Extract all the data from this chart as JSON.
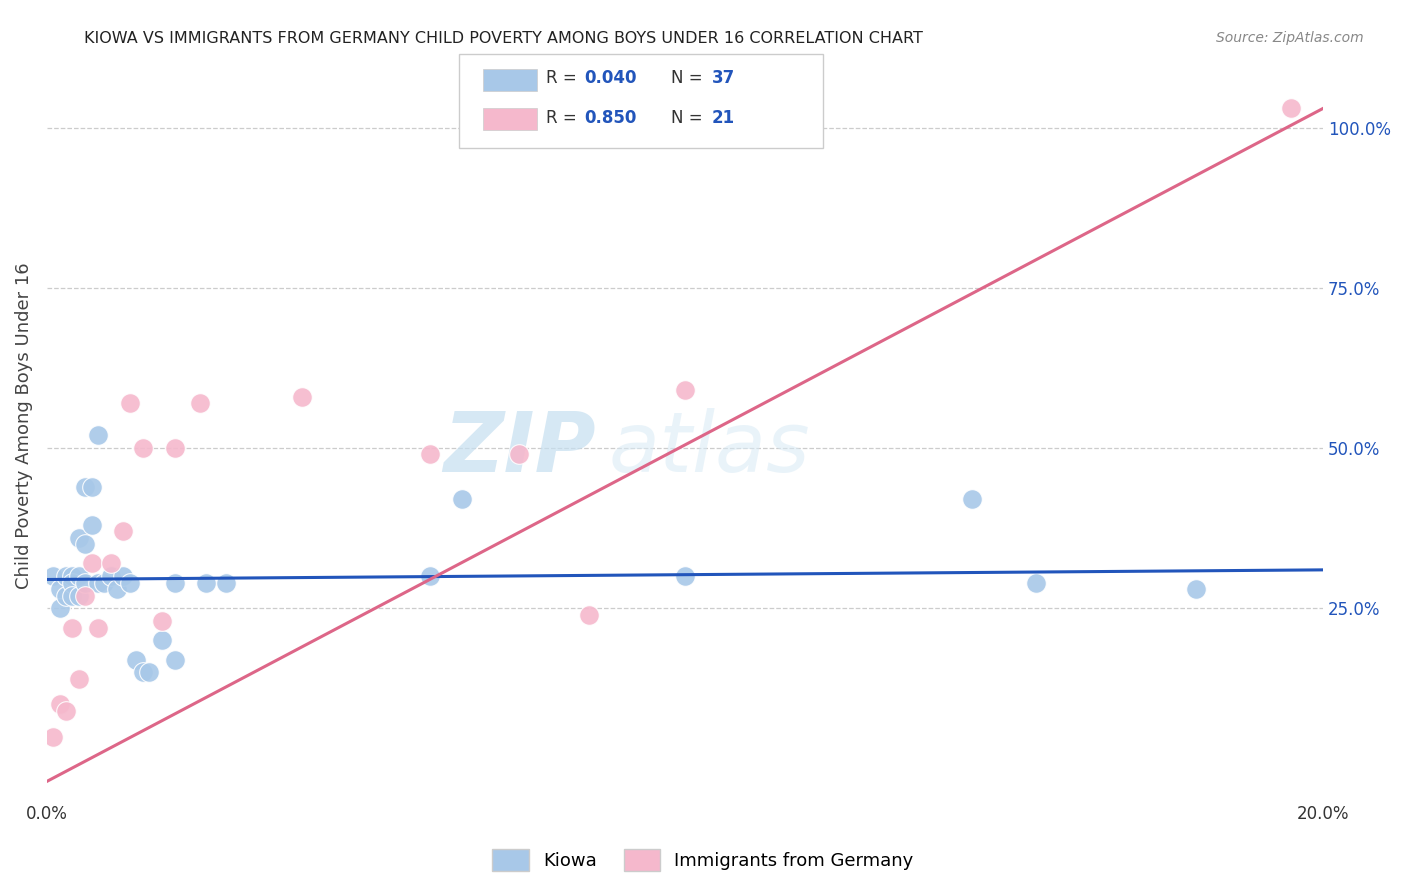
{
  "title": "KIOWA VS IMMIGRANTS FROM GERMANY CHILD POVERTY AMONG BOYS UNDER 16 CORRELATION CHART",
  "source": "Source: ZipAtlas.com",
  "ylabel": "Child Poverty Among Boys Under 16",
  "xlim": [
    0.0,
    0.2
  ],
  "ylim": [
    -0.05,
    1.12
  ],
  "right_yticks": [
    0.25,
    0.5,
    0.75,
    1.0
  ],
  "right_yticklabels": [
    "25.0%",
    "50.0%",
    "75.0%",
    "100.0%"
  ],
  "xtick_positions": [
    0.0,
    0.04,
    0.08,
    0.12,
    0.16,
    0.2
  ],
  "xtick_labels": [
    "0.0%",
    "",
    "",
    "",
    "",
    "20.0%"
  ],
  "watermark_zip": "ZIP",
  "watermark_atlas": "atlas",
  "blue_color": "#a8c8e8",
  "pink_color": "#f5b8cc",
  "blue_line_color": "#2255bb",
  "pink_line_color": "#dd6688",
  "right_tick_color": "#2255bb",
  "grid_color": "#cccccc",
  "background_color": "#ffffff",
  "title_color": "#222222",
  "axis_label_color": "#444444",
  "kiowa_x": [
    0.001,
    0.002,
    0.002,
    0.003,
    0.003,
    0.004,
    0.004,
    0.004,
    0.005,
    0.005,
    0.005,
    0.006,
    0.006,
    0.006,
    0.007,
    0.007,
    0.008,
    0.008,
    0.009,
    0.01,
    0.011,
    0.012,
    0.013,
    0.014,
    0.015,
    0.016,
    0.018,
    0.02,
    0.02,
    0.025,
    0.028,
    0.06,
    0.065,
    0.1,
    0.145,
    0.155,
    0.18
  ],
  "kiowa_y": [
    0.3,
    0.28,
    0.25,
    0.3,
    0.27,
    0.3,
    0.29,
    0.27,
    0.3,
    0.36,
    0.27,
    0.44,
    0.35,
    0.29,
    0.38,
    0.44,
    0.52,
    0.29,
    0.29,
    0.3,
    0.28,
    0.3,
    0.29,
    0.17,
    0.15,
    0.15,
    0.2,
    0.17,
    0.29,
    0.29,
    0.29,
    0.3,
    0.42,
    0.3,
    0.42,
    0.29,
    0.28
  ],
  "germany_x": [
    0.001,
    0.002,
    0.003,
    0.004,
    0.005,
    0.006,
    0.007,
    0.008,
    0.01,
    0.012,
    0.013,
    0.015,
    0.018,
    0.02,
    0.024,
    0.04,
    0.06,
    0.074,
    0.085,
    0.1,
    0.195
  ],
  "germany_y": [
    0.05,
    0.1,
    0.09,
    0.22,
    0.14,
    0.27,
    0.32,
    0.22,
    0.32,
    0.37,
    0.57,
    0.5,
    0.23,
    0.5,
    0.57,
    0.58,
    0.49,
    0.49,
    0.24,
    0.59,
    1.03
  ],
  "blue_trend_x": [
    0.0,
    0.2
  ],
  "blue_trend_y": [
    0.295,
    0.31
  ],
  "pink_trend_x": [
    0.0,
    0.2
  ],
  "pink_trend_y": [
    -0.02,
    1.03
  ],
  "legend_blue_label": "R = 0.040   N = 37",
  "legend_pink_label": "R = 0.850   N = 21",
  "bottom_legend_labels": [
    "Kiowa",
    "Immigrants from Germany"
  ]
}
